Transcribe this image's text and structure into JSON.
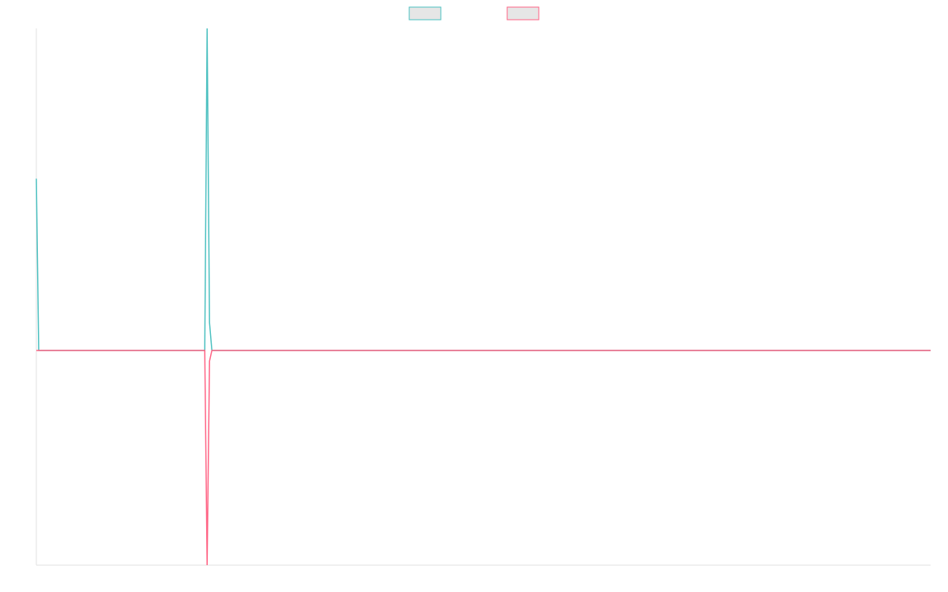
{
  "chart_data": {
    "type": "line",
    "series": [
      {
        "color": "#4bc0c0",
        "x": [
          0,
          1,
          13,
          71,
          72,
          73,
          74,
          377
        ],
        "values": [
          1.6,
          0,
          0,
          0,
          3,
          0.26,
          0,
          0
        ]
      },
      {
        "color": "#ff6384",
        "x": [
          0,
          71,
          72,
          73,
          74,
          377
        ],
        "values": [
          0,
          0,
          -2,
          -0.1,
          0,
          0
        ]
      }
    ],
    "xlim": [
      0,
      377
    ],
    "ylim": [
      -2,
      3
    ]
  }
}
